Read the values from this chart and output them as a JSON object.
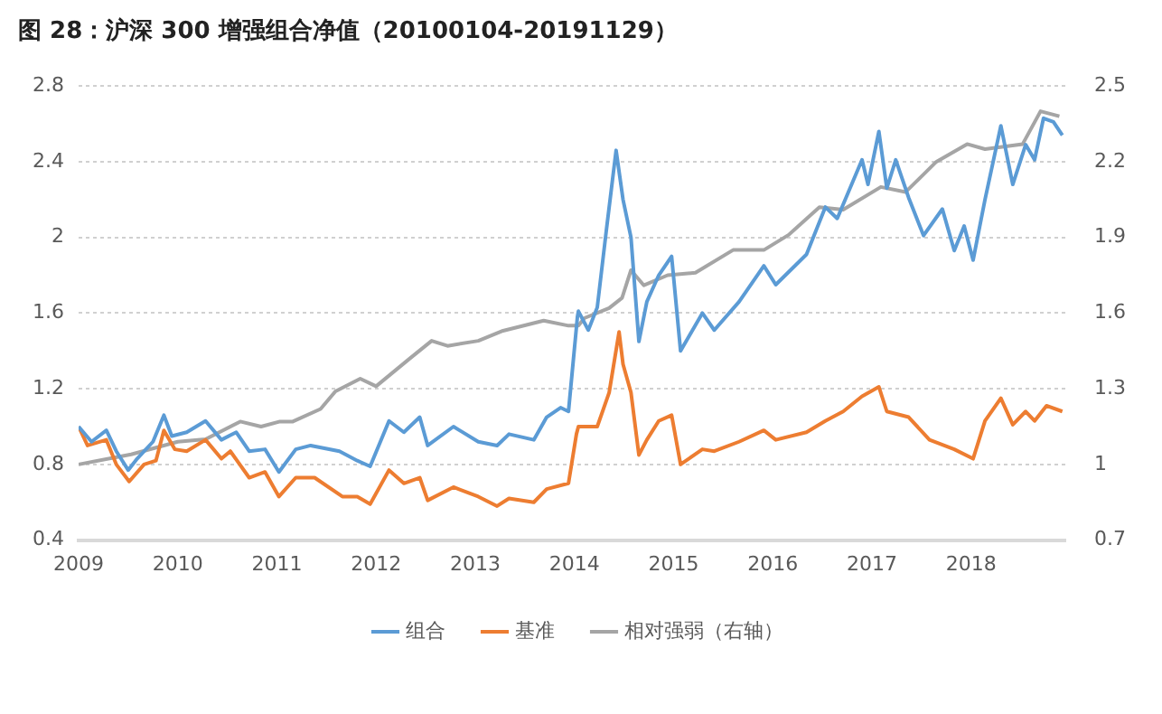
{
  "chart_data": {
    "type": "line",
    "title": "图 28：沪深 300 增强组合净值（20100104-20191129）",
    "xlim": [
      2009,
      2018.95
    ],
    "xticks": [
      2009,
      2010,
      2011,
      2012,
      2013,
      2014,
      2015,
      2016,
      2017,
      2018
    ],
    "ylim": [
      0.4,
      2.8
    ],
    "yticks": [
      0.4,
      0.8,
      1.2,
      1.6,
      2,
      2.4,
      2.8
    ],
    "y2lim": [
      0.7,
      2.5
    ],
    "y2ticks": [
      0.7,
      1,
      1.3,
      1.6,
      1.9,
      2.2,
      2.5
    ],
    "grid": "y",
    "legend": "bottom",
    "marker": "none",
    "line_style": "solid",
    "series": [
      {
        "name": "组合",
        "color": "#5b9bd5",
        "x": [
          2009.0,
          2009.13,
          2009.28,
          2009.38,
          2009.5,
          2009.59,
          2009.75,
          2009.86,
          2009.94,
          2010.09,
          2010.28,
          2010.44,
          2010.59,
          2010.72,
          2010.88,
          2011.02,
          2011.19,
          2011.34,
          2011.63,
          2011.81,
          2011.94,
          2012.13,
          2012.28,
          2012.44,
          2012.52,
          2012.78,
          2013.03,
          2013.22,
          2013.34,
          2013.59,
          2013.72,
          2013.86,
          2013.94,
          2014.03,
          2014.04,
          2014.14,
          2014.23,
          2014.32,
          2014.42,
          2014.49,
          2014.57,
          2014.65,
          2014.73,
          2014.85,
          2014.98,
          2015.07,
          2015.29,
          2015.41,
          2015.66,
          2015.91,
          2016.03,
          2016.34,
          2016.53,
          2016.65,
          2016.9,
          2016.96,
          2017.07,
          2017.15,
          2017.24,
          2017.37,
          2017.52,
          2017.71,
          2017.83,
          2017.93,
          2018.02,
          2018.14,
          2018.3,
          2018.42,
          2018.55,
          2018.64,
          2018.73,
          2018.83,
          2018.92
        ],
        "values": [
          1.0,
          0.92,
          0.98,
          0.87,
          0.77,
          0.83,
          0.92,
          1.06,
          0.95,
          0.97,
          1.03,
          0.93,
          0.97,
          0.87,
          0.88,
          0.76,
          0.88,
          0.9,
          0.87,
          0.82,
          0.79,
          1.03,
          0.97,
          1.05,
          0.9,
          1.0,
          0.92,
          0.9,
          0.96,
          0.93,
          1.05,
          1.1,
          1.08,
          1.58,
          1.61,
          1.51,
          1.63,
          2.03,
          2.46,
          2.2,
          2.0,
          1.45,
          1.66,
          1.8,
          1.9,
          1.4,
          1.6,
          1.51,
          1.66,
          1.85,
          1.75,
          1.91,
          2.16,
          2.1,
          2.41,
          2.28,
          2.56,
          2.26,
          2.41,
          2.21,
          2.01,
          2.15,
          1.93,
          2.06,
          1.88,
          2.2,
          2.59,
          2.28,
          2.49,
          2.41,
          2.63,
          2.61,
          2.54
        ]
      },
      {
        "name": "基准",
        "color": "#ed7d31",
        "x": [
          2009.0,
          2009.09,
          2009.28,
          2009.38,
          2009.51,
          2009.66,
          2009.78,
          2009.86,
          2009.97,
          2010.09,
          2010.28,
          2010.44,
          2010.53,
          2010.72,
          2010.88,
          2011.02,
          2011.19,
          2011.38,
          2011.66,
          2011.81,
          2011.94,
          2012.13,
          2012.28,
          2012.44,
          2012.52,
          2012.78,
          2013.03,
          2013.22,
          2013.34,
          2013.59,
          2013.72,
          2013.94,
          2014.02,
          2014.04,
          2014.23,
          2014.35,
          2014.45,
          2014.49,
          2014.57,
          2014.65,
          2014.73,
          2014.85,
          2014.98,
          2015.07,
          2015.29,
          2015.41,
          2015.66,
          2015.91,
          2016.03,
          2016.34,
          2016.53,
          2016.71,
          2016.9,
          2017.07,
          2017.15,
          2017.37,
          2017.58,
          2017.83,
          2018.02,
          2018.14,
          2018.3,
          2018.42,
          2018.55,
          2018.64,
          2018.76,
          2018.92
        ],
        "values": [
          1.0,
          0.9,
          0.93,
          0.8,
          0.71,
          0.8,
          0.82,
          0.98,
          0.88,
          0.87,
          0.93,
          0.83,
          0.87,
          0.73,
          0.76,
          0.63,
          0.73,
          0.73,
          0.63,
          0.63,
          0.59,
          0.77,
          0.7,
          0.73,
          0.61,
          0.68,
          0.63,
          0.58,
          0.62,
          0.6,
          0.67,
          0.7,
          0.96,
          1.0,
          1.0,
          1.18,
          1.5,
          1.33,
          1.18,
          0.85,
          0.93,
          1.03,
          1.06,
          0.8,
          0.88,
          0.87,
          0.92,
          0.98,
          0.93,
          0.97,
          1.03,
          1.08,
          1.16,
          1.21,
          1.08,
          1.05,
          0.93,
          0.88,
          0.83,
          1.03,
          1.15,
          1.01,
          1.08,
          1.03,
          1.11,
          1.08
        ]
      },
      {
        "name": "相对强弱（右轴）",
        "color": "#a5a5a5",
        "axis": "y2",
        "x": [
          2009.0,
          2009.53,
          2010.0,
          2010.28,
          2010.63,
          2010.84,
          2011.03,
          2011.16,
          2011.44,
          2011.59,
          2011.84,
          2012.0,
          2012.34,
          2012.56,
          2012.72,
          2013.03,
          2013.28,
          2013.69,
          2013.94,
          2014.04,
          2014.1,
          2014.35,
          2014.48,
          2014.57,
          2014.7,
          2014.94,
          2015.22,
          2015.6,
          2015.91,
          2016.16,
          2016.47,
          2016.71,
          2017.09,
          2017.34,
          2017.65,
          2017.96,
          2018.14,
          2018.52,
          2018.7,
          2018.89
        ],
        "values": [
          1.0,
          1.04,
          1.09,
          1.1,
          1.17,
          1.15,
          1.17,
          1.17,
          1.22,
          1.29,
          1.34,
          1.31,
          1.42,
          1.49,
          1.47,
          1.49,
          1.53,
          1.57,
          1.55,
          1.55,
          1.58,
          1.62,
          1.66,
          1.77,
          1.71,
          1.75,
          1.76,
          1.85,
          1.85,
          1.91,
          2.02,
          2.01,
          2.1,
          2.08,
          2.2,
          2.27,
          2.25,
          2.27,
          2.4,
          2.38
        ]
      }
    ]
  }
}
